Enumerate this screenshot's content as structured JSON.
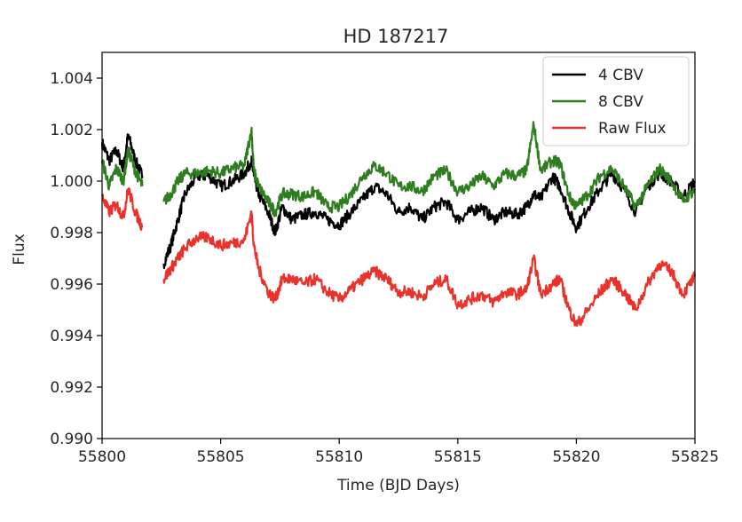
{
  "chart_data": {
    "type": "line",
    "title": "HD 187217",
    "xlabel": "Time (BJD Days)",
    "ylabel": "Flux",
    "xlim": [
      55800,
      55825
    ],
    "ylim": [
      0.99,
      1.005
    ],
    "xticks": [
      55800,
      55805,
      55810,
      55815,
      55820,
      55825
    ],
    "xtick_labels": [
      "55800",
      "55805",
      "55810",
      "55815",
      "55820",
      "55825"
    ],
    "yticks": [
      0.99,
      0.992,
      0.994,
      0.996,
      0.998,
      1.0,
      1.002,
      1.004
    ],
    "ytick_labels": [
      "0.990",
      "0.992",
      "0.994",
      "0.996",
      "0.998",
      "1.000",
      "1.002",
      "1.004"
    ],
    "grid": false,
    "legend_position": "top-right",
    "gap": [
      55801.8,
      55802.5
    ],
    "series": [
      {
        "name": "4 CBV",
        "color": "#000000",
        "x": [
          55800.0,
          55800.3,
          55800.6,
          55800.9,
          55801.1,
          55801.4,
          55801.7,
          55802.6,
          55802.9,
          55803.2,
          55803.5,
          55804.0,
          55804.5,
          55805.0,
          55805.5,
          55806.0,
          55806.3,
          55806.4,
          55806.6,
          55807.0,
          55807.3,
          55807.6,
          55808.0,
          55808.5,
          55809.0,
          55809.5,
          55810.0,
          55810.5,
          55811.0,
          55811.5,
          55812.0,
          55812.5,
          55813.0,
          55813.5,
          55814.0,
          55814.5,
          55815.0,
          55815.5,
          55816.0,
          55816.5,
          55817.0,
          55817.5,
          55817.9,
          55818.2,
          55818.5,
          55819.0,
          55819.3,
          55819.7,
          55820.0,
          55820.5,
          55821.0,
          55821.5,
          55822.0,
          55822.5,
          55823.0,
          55823.5,
          55824.0,
          55824.5,
          55825.0
        ],
        "y": [
          1.0015,
          1.0008,
          1.0012,
          1.0005,
          1.0018,
          1.0008,
          1.0002,
          0.9968,
          0.9975,
          0.9985,
          0.9995,
          1.0002,
          1.0002,
          0.9998,
          1.0,
          1.0003,
          1.0008,
          1.0002,
          0.9995,
          0.9988,
          0.998,
          0.999,
          0.9985,
          0.9987,
          0.9988,
          0.9985,
          0.9983,
          0.9988,
          0.9993,
          0.9998,
          0.9995,
          0.9988,
          0.999,
          0.9985,
          0.999,
          0.9992,
          0.9985,
          0.9988,
          0.999,
          0.9985,
          0.9988,
          0.9987,
          0.999,
          0.9995,
          0.9993,
          1.0002,
          0.9998,
          0.9988,
          0.9982,
          0.999,
          0.9997,
          1.0003,
          0.9997,
          0.9988,
          0.9998,
          1.0003,
          1.0,
          0.9994,
          1.0
        ]
      },
      {
        "name": "8 CBV",
        "color": "#2e7d1f",
        "x": [
          55800.0,
          55800.3,
          55800.6,
          55800.9,
          55801.1,
          55801.4,
          55801.7,
          55802.6,
          55802.9,
          55803.2,
          55803.5,
          55804.0,
          55804.5,
          55805.0,
          55805.5,
          55806.0,
          55806.3,
          55806.4,
          55806.6,
          55807.0,
          55807.3,
          55807.6,
          55808.0,
          55808.5,
          55809.0,
          55809.5,
          55810.0,
          55810.5,
          55811.0,
          55811.5,
          55812.0,
          55812.5,
          55813.0,
          55813.5,
          55814.0,
          55814.5,
          55815.0,
          55815.5,
          55816.0,
          55816.5,
          55817.0,
          55817.5,
          55817.9,
          55818.2,
          55818.5,
          55819.0,
          55819.3,
          55819.7,
          55820.0,
          55820.5,
          55821.0,
          55821.5,
          55822.0,
          55822.5,
          55823.0,
          55823.5,
          55824.0,
          55824.5,
          55825.0
        ],
        "y": [
          1.0008,
          0.9998,
          1.0005,
          1.0,
          1.0012,
          1.0004,
          0.9998,
          0.9992,
          0.9995,
          1.0,
          1.0003,
          1.0003,
          1.0004,
          1.0003,
          1.0005,
          1.0006,
          1.002,
          1.0004,
          0.9998,
          0.9992,
          0.9988,
          0.9995,
          0.9995,
          0.9994,
          0.9996,
          0.999,
          0.999,
          0.9995,
          1.0002,
          1.0006,
          1.0003,
          0.9998,
          0.9998,
          0.9996,
          1.0002,
          1.0004,
          0.9996,
          0.9998,
          1.0002,
          0.9998,
          1.0003,
          1.0002,
          1.0004,
          1.0022,
          1.0004,
          1.0008,
          1.0007,
          0.9994,
          0.999,
          0.9995,
          1.0002,
          1.0005,
          0.9998,
          0.999,
          0.9998,
          1.0005,
          1.0,
          0.9992,
          0.9997
        ]
      },
      {
        "name": "Raw Flux",
        "color": "#e8322b",
        "x": [
          55800.0,
          55800.3,
          55800.6,
          55800.9,
          55801.1,
          55801.4,
          55801.7,
          55802.6,
          55802.9,
          55803.2,
          55803.5,
          55804.0,
          55804.5,
          55805.0,
          55805.5,
          55806.0,
          55806.3,
          55806.4,
          55806.6,
          55807.0,
          55807.3,
          55807.6,
          55808.0,
          55808.5,
          55809.0,
          55809.5,
          55810.0,
          55810.5,
          55811.0,
          55811.5,
          55812.0,
          55812.5,
          55813.0,
          55813.5,
          55814.0,
          55814.5,
          55815.0,
          55815.5,
          55816.0,
          55816.5,
          55817.0,
          55817.5,
          55817.9,
          55818.2,
          55818.5,
          55819.0,
          55819.3,
          55819.7,
          55820.0,
          55820.5,
          55821.0,
          55821.5,
          55822.0,
          55822.5,
          55823.0,
          55823.5,
          55824.0,
          55824.5,
          55825.0
        ],
        "y": [
          0.9994,
          0.9988,
          0.9991,
          0.9986,
          0.9997,
          0.9988,
          0.9982,
          0.9962,
          0.9966,
          0.997,
          0.9974,
          0.9978,
          0.9978,
          0.9975,
          0.9976,
          0.9977,
          0.9988,
          0.9975,
          0.9966,
          0.9957,
          0.9954,
          0.9962,
          0.9962,
          0.996,
          0.9962,
          0.9957,
          0.9954,
          0.9958,
          0.9962,
          0.9965,
          0.9962,
          0.9957,
          0.9957,
          0.9955,
          0.996,
          0.9962,
          0.9952,
          0.9954,
          0.9956,
          0.9953,
          0.9957,
          0.9956,
          0.9958,
          0.997,
          0.9956,
          0.996,
          0.9962,
          0.995,
          0.9944,
          0.995,
          0.9957,
          0.9962,
          0.9957,
          0.995,
          0.996,
          0.9968,
          0.9965,
          0.9956,
          0.9963
        ]
      }
    ]
  }
}
